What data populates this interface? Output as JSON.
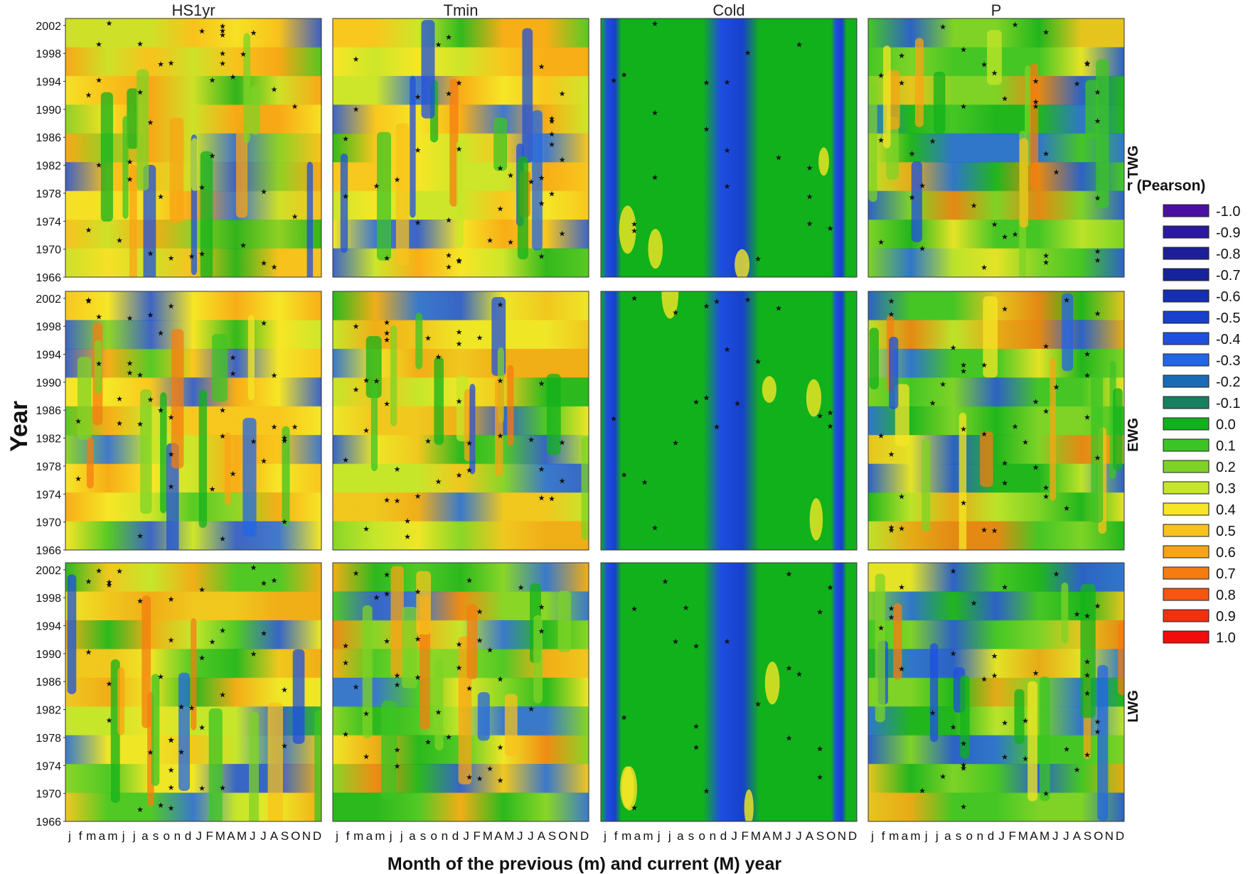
{
  "chart_data": {
    "type": "heatmap",
    "ylabel": "Year",
    "xlabel": "Month of the previous (m) and current (M) year",
    "columns": [
      "HS1yr",
      "Tmin",
      "Cold",
      "P"
    ],
    "rows": [
      "TWG",
      "EWG",
      "LWG"
    ],
    "yticks": [
      "2002",
      "1998",
      "1994",
      "1990",
      "1986",
      "1982",
      "1978",
      "1974",
      "1970",
      "1966"
    ],
    "ylim": [
      1966,
      2003
    ],
    "month_ticks": [
      "j",
      "f",
      "m",
      "a",
      "m",
      "j",
      "j",
      "a",
      "s",
      "o",
      "n",
      "d",
      "J",
      "F",
      "M",
      "A",
      "M",
      "J",
      "J",
      "A",
      "S",
      "O",
      "N",
      "D"
    ],
    "legend": {
      "title": "r (Pearson)",
      "labels": [
        "-1.0",
        "-0.9",
        "-0.8",
        "-0.7",
        "-0.6",
        "-0.5",
        "-0.4",
        "-0.3",
        "-0.2",
        "-0.1",
        "0.0",
        "0.1",
        "0.2",
        "0.3",
        "0.4",
        "0.5",
        "0.6",
        "0.7",
        "0.8",
        "0.9",
        "1.0"
      ],
      "colors": [
        "#4b0fa3",
        "#2a1aa0",
        "#1c1f98",
        "#15249b",
        "#1430b0",
        "#1740cc",
        "#1e4fe0",
        "#2266e6",
        "#1a6bb5",
        "#168060",
        "#11b11b",
        "#3cc424",
        "#7ed326",
        "#c6e62a",
        "#f6e626",
        "#f8c21c",
        "#f8a414",
        "#f67c10",
        "#f75511",
        "#f42f10",
        "#f20c0c"
      ]
    },
    "panels": [
      {
        "row": "TWG",
        "column": "HS1yr",
        "mean_r": 0.45
      },
      {
        "row": "TWG",
        "column": "Tmin",
        "mean_r": 0.35
      },
      {
        "row": "TWG",
        "column": "Cold",
        "mean_r": -0.05
      },
      {
        "row": "TWG",
        "column": "P",
        "mean_r": 0.15
      },
      {
        "row": "EWG",
        "column": "HS1yr",
        "mean_r": 0.4
      },
      {
        "row": "EWG",
        "column": "Tmin",
        "mean_r": 0.3
      },
      {
        "row": "EWG",
        "column": "Cold",
        "mean_r": -0.05
      },
      {
        "row": "EWG",
        "column": "P",
        "mean_r": 0.15
      },
      {
        "row": "LWG",
        "column": "HS1yr",
        "mean_r": 0.3
      },
      {
        "row": "LWG",
        "column": "Tmin",
        "mean_r": 0.25
      },
      {
        "row": "LWG",
        "column": "Cold",
        "mean_r": -0.05
      },
      {
        "row": "LWG",
        "column": "P",
        "mean_r": 0.15
      }
    ]
  }
}
